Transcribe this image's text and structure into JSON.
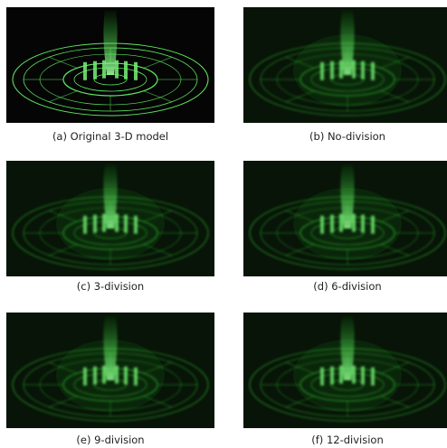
{
  "figure": {
    "panels": [
      {
        "caption": "(a) Original 3-D model"
      },
      {
        "caption": "(b) No-division"
      },
      {
        "caption": "(c) 3-division"
      },
      {
        "caption": "(d) 6-division"
      },
      {
        "caption": "(e) 9-division"
      },
      {
        "caption": "(f) 12-division"
      }
    ]
  }
}
